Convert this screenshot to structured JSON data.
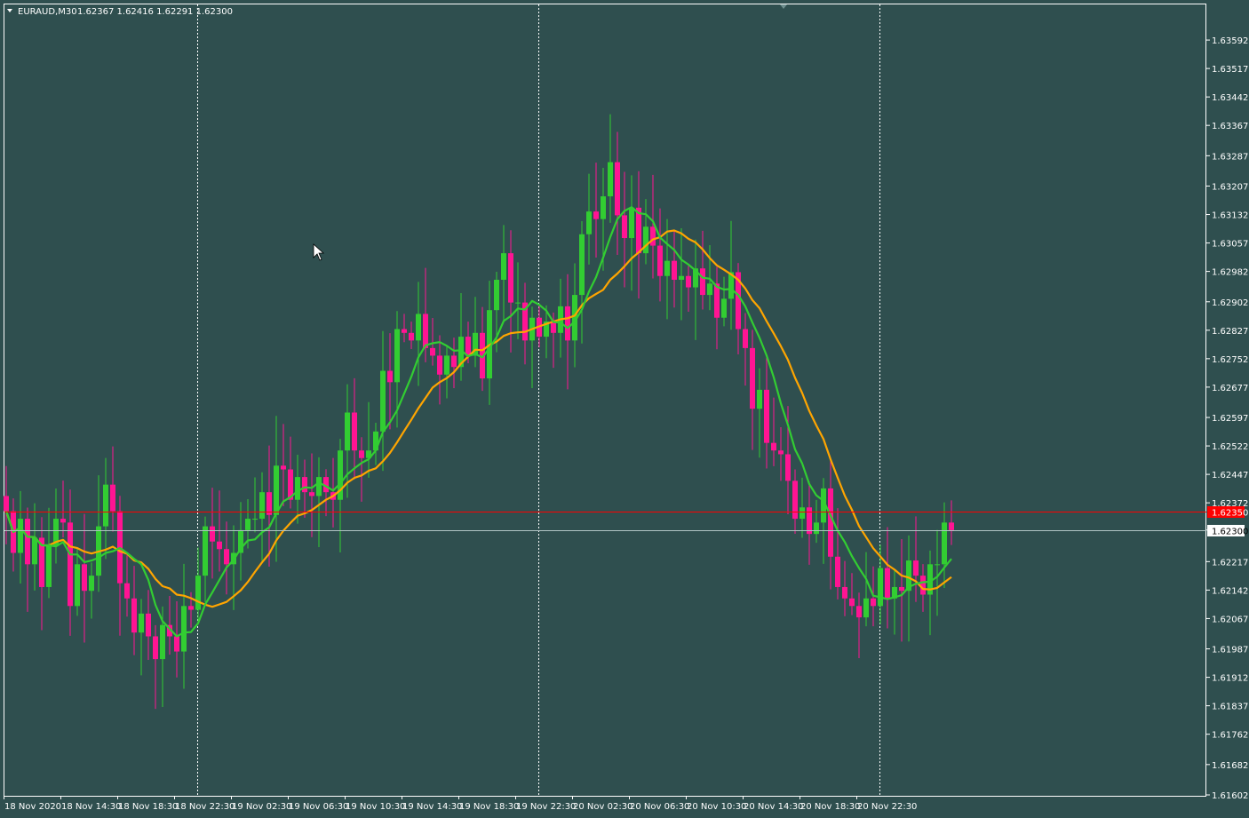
{
  "header": {
    "symbol_label": "EURAUD,M30",
    "ohlc_label": "1.62367 1.62416 1.62291 1.62300"
  },
  "colors": {
    "background": "#2f4f4f",
    "bull": "#32cd32",
    "bear": "#ff1493",
    "ma_slow": "#ffa500",
    "ma_fast": "#32cd32",
    "bid_line": "#b0c4c4",
    "ask_line": "#ff0000",
    "text": "#ffffff"
  },
  "chart_data": {
    "type": "candlestick",
    "symbol": "EURAUD",
    "timeframe": "M30",
    "ylim": [
      1.61602,
      1.63632
    ],
    "y_ticks": [
      "1.63592",
      "1.63517",
      "1.63442",
      "1.63367",
      "1.63287",
      "1.63207",
      "1.63132",
      "1.63057",
      "1.62982",
      "1.62902",
      "1.62827",
      "1.62752",
      "1.62677",
      "1.62597",
      "1.62522",
      "1.62447",
      "1.62372",
      "1.62300",
      "1.62217",
      "1.62142",
      "1.62067",
      "1.61987",
      "1.61912",
      "1.61837",
      "1.61762",
      "1.61682",
      "1.61602"
    ],
    "x_ticks": [
      "18 Nov 2020",
      "18 Nov 14:30",
      "18 Nov 18:30",
      "18 Nov 22:30",
      "19 Nov 02:30",
      "19 Nov 06:30",
      "19 Nov 10:30",
      "19 Nov 14:30",
      "19 Nov 18:30",
      "19 Nov 22:30",
      "20 Nov 02:30",
      "20 Nov 06:30",
      "20 Nov 10:30",
      "20 Nov 14:30",
      "20 Nov 18:30",
      "20 Nov 22:30"
    ],
    "bid_price": "1.62300",
    "ask_price": "1.62350",
    "closes": [
      1.6235,
      1.6224,
      1.6233,
      1.6221,
      1.6228,
      1.6215,
      1.6226,
      1.6233,
      1.6232,
      1.621,
      1.6221,
      1.6214,
      1.6218,
      1.6231,
      1.6242,
      1.6235,
      1.6216,
      1.6212,
      1.6203,
      1.6208,
      1.6202,
      1.6196,
      1.6205,
      1.6202,
      1.6198,
      1.621,
      1.6209,
      1.6218,
      1.6231,
      1.6227,
      1.6225,
      1.6221,
      1.6224,
      1.623,
      1.6233,
      1.6233,
      1.624,
      1.6234,
      1.6247,
      1.6246,
      1.6238,
      1.6244,
      1.624,
      1.6239,
      1.6244,
      1.624,
      1.6238,
      1.6251,
      1.6261,
      1.6251,
      1.6249,
      1.6251,
      1.6256,
      1.6272,
      1.6269,
      1.6283,
      1.6282,
      1.628,
      1.6287,
      1.6278,
      1.6276,
      1.6271,
      1.6276,
      1.6273,
      1.6281,
      1.6276,
      1.6282,
      1.627,
      1.6288,
      1.6296,
      1.6303,
      1.629,
      1.629,
      1.628,
      1.6286,
      1.6281,
      1.6285,
      1.6282,
      1.6289,
      1.628,
      1.6292,
      1.6308,
      1.6314,
      1.6312,
      1.6318,
      1.6327,
      1.6313,
      1.6307,
      1.6315,
      1.6303,
      1.631,
      1.6305,
      1.6297,
      1.6301,
      1.6296,
      1.6297,
      1.6294,
      1.6299,
      1.6292,
      1.6295,
      1.6286,
      1.6291,
      1.6298,
      1.6283,
      1.6278,
      1.6262,
      1.6267,
      1.6253,
      1.6251,
      1.625,
      1.6243,
      1.6233,
      1.6236,
      1.6229,
      1.6232,
      1.6241,
      1.6223,
      1.6215,
      1.6212,
      1.621,
      1.6207,
      1.6212,
      1.621,
      1.622,
      1.6212,
      1.6215,
      1.6214,
      1.6222,
      1.6218,
      1.6213,
      1.6221,
      1.6221,
      1.6232,
      1.623
    ]
  }
}
